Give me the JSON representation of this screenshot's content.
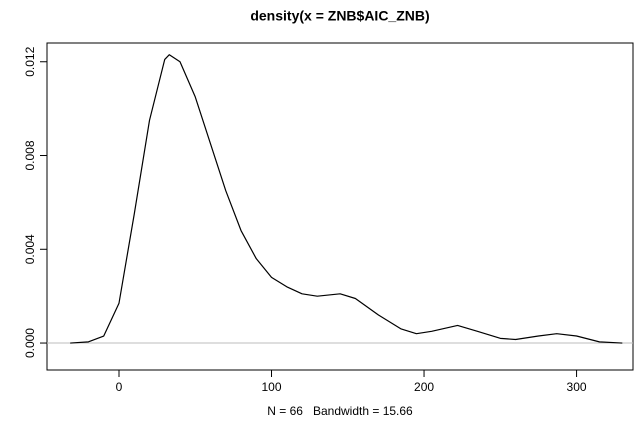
{
  "chart_data": {
    "type": "line",
    "title": "density(x = ZNB$AIC_ZNB)",
    "x_label": "N = 66   Bandwidth = 15.66",
    "x": [
      -32,
      -20,
      -10,
      0,
      10,
      20,
      30,
      33,
      40,
      50,
      60,
      70,
      80,
      90,
      100,
      110,
      120,
      130,
      145,
      155,
      170,
      185,
      195,
      205,
      222,
      235,
      250,
      260,
      275,
      287,
      300,
      315,
      330
    ],
    "series": [
      {
        "color": "#000000",
        "values": [
          0,
          5e-05,
          0.0003,
          0.0017,
          0.0055,
          0.0095,
          0.0121,
          0.0123,
          0.012,
          0.0105,
          0.0085,
          0.0065,
          0.0048,
          0.0036,
          0.0028,
          0.0024,
          0.0021,
          0.002,
          0.0021,
          0.0019,
          0.0012,
          0.0006,
          0.0004,
          0.0005,
          0.00075,
          0.0005,
          0.0002,
          0.00015,
          0.0003,
          0.0004,
          0.0003,
          5e-05,
          0
        ]
      }
    ],
    "xlim": [
      -47.2,
      337
    ],
    "ylim": [
      -0.00115,
      0.0128
    ],
    "xticks": [
      0,
      100,
      200,
      300
    ],
    "yticks": [
      {
        "value": 0,
        "label": "0.000"
      },
      {
        "value": 0.004,
        "label": "0.004"
      },
      {
        "value": 0.008,
        "label": "0.008"
      },
      {
        "value": 0.012,
        "label": "0.012"
      }
    ],
    "zero_line_color": "#bebebe"
  }
}
